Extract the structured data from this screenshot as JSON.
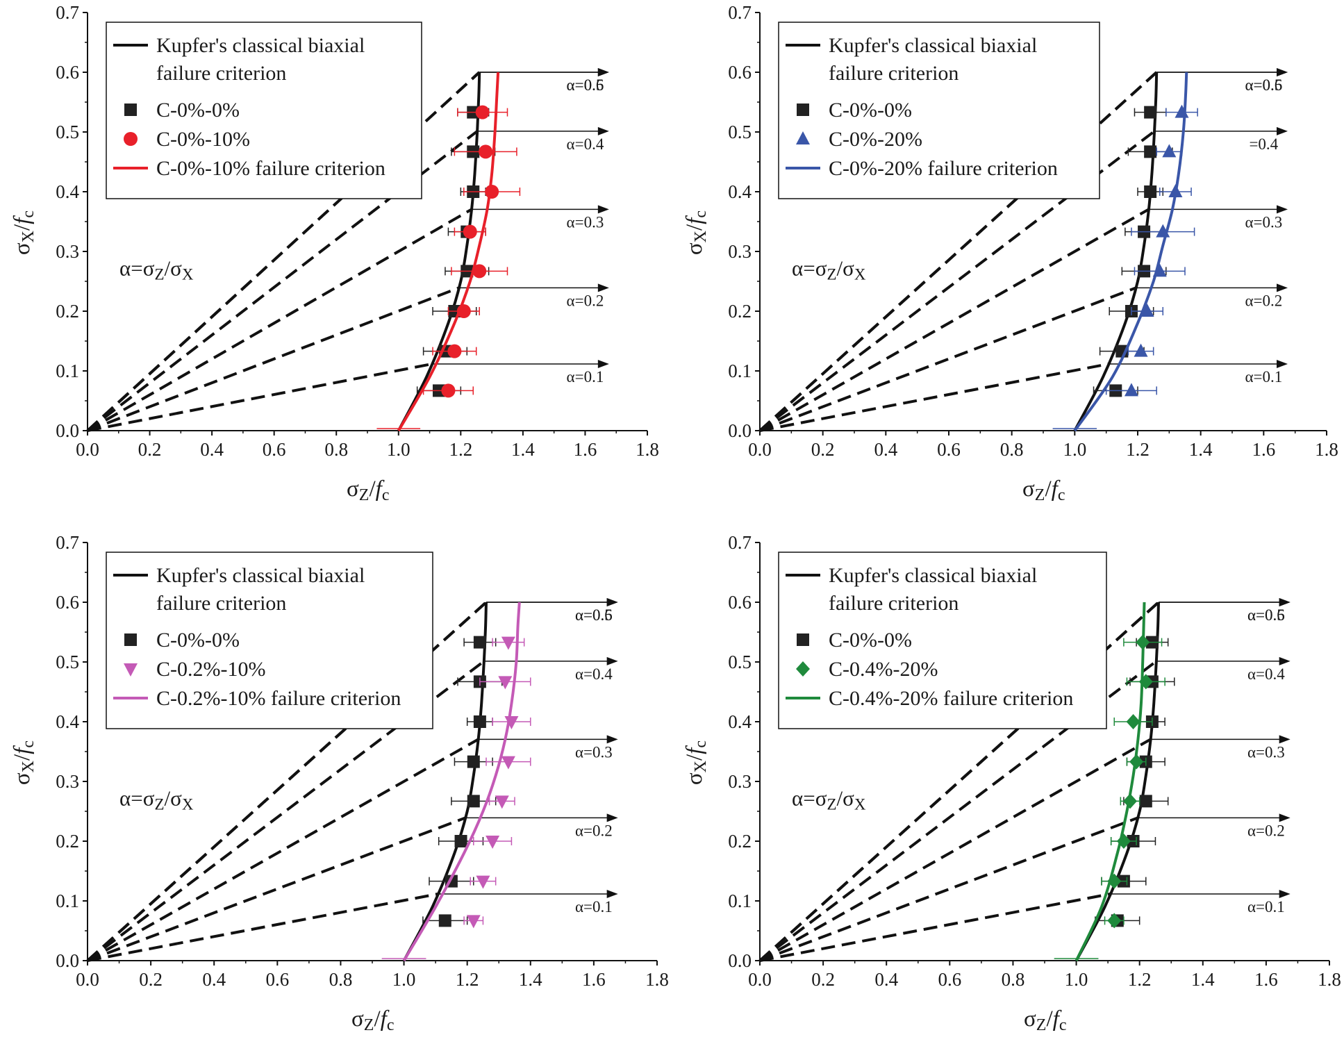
{
  "figure": {
    "xlim": [
      0,
      1.8
    ],
    "ylim": [
      0,
      0.7
    ],
    "x_ticks": [
      "0.0",
      "0.2",
      "0.4",
      "0.6",
      "0.8",
      "1.0",
      "1.2",
      "1.4",
      "1.6",
      "1.8"
    ],
    "y_ticks": [
      "0.0",
      "0.1",
      "0.2",
      "0.3",
      "0.4",
      "0.5",
      "0.6",
      "0.7"
    ],
    "x_axis_label": {
      "sigma": "σ",
      "sub": "Z",
      "slash": "/",
      "f": "f",
      "fsub": "c"
    },
    "y_axis_label": {
      "sigma": "σ",
      "sub": "X",
      "slash": "/",
      "f": "f",
      "fsub": "c"
    },
    "equation": {
      "alpha": "α=σ",
      "sub1": "Z",
      "mid": "/σ",
      "sub2": "X"
    },
    "alpha_labels": [
      "α=0.1",
      "α=0.2",
      "α=0.3",
      "α=0.4",
      "α=0.5",
      "α=0.6"
    ],
    "legend_kupfer_line1": "Kupfer's classical biaxial",
    "legend_kupfer_line2": "failure criterion"
  },
  "colors": {
    "kupfer": "#111111",
    "reference": "#222222",
    "red": "#e8202a",
    "blue": "#3a56a8",
    "magenta": "#c45ab6",
    "green": "#1f8a3c"
  },
  "chart_data": [
    {
      "type": "scatter",
      "panel": "top-left",
      "title": "",
      "xlabel": "σZ/fc",
      "ylabel": "σX/fc",
      "xlim": [
        0,
        1.8
      ],
      "ylim": [
        0,
        0.7
      ],
      "alpha_lines": [
        0.1,
        0.2,
        0.3,
        0.4,
        0.5,
        0.6
      ],
      "alpha_label_text": [
        "α=0.1",
        "α=0.2",
        "α=0.3",
        "α=0.4",
        "α=0.5",
        "α=0.6"
      ],
      "kupfer_curve": {
        "x": [
          1.0,
          1.09,
          1.16,
          1.2,
          1.22,
          1.235,
          1.245,
          1.253,
          1.258,
          1.26
        ],
        "y": [
          0.0,
          0.09,
          0.18,
          0.25,
          0.31,
          0.37,
          0.43,
          0.5,
          0.56,
          0.6
        ]
      },
      "legend": [
        "Kupfer's classical biaxial failure criterion",
        "C-0%-0%",
        "C-0%-10%",
        "C-0%-10%  failure criterion"
      ],
      "series": [
        {
          "name": "C-0%-0%",
          "marker": "square",
          "color": "#222222",
          "x": [
            1.13,
            1.15,
            1.18,
            1.22,
            1.22,
            1.24,
            1.24,
            1.24
          ],
          "y": [
            0.067,
            0.133,
            0.2,
            0.267,
            0.333,
            0.4,
            0.467,
            0.533
          ],
          "xerr": [
            0.07,
            0.07,
            0.07,
            0.07,
            0.06,
            0.04,
            0.07,
            0.05
          ]
        },
        {
          "name": "C-0%-10%",
          "marker": "circle",
          "color": "#e8202a",
          "x": [
            1.16,
            1.18,
            1.21,
            1.26,
            1.23,
            1.3,
            1.28,
            1.27
          ],
          "y": [
            0.067,
            0.133,
            0.2,
            0.267,
            0.333,
            0.4,
            0.467,
            0.533
          ],
          "xerr": [
            0.08,
            0.07,
            0.05,
            0.09,
            0.05,
            0.09,
            0.1,
            0.08
          ]
        },
        {
          "name": "C-0%-10%  failure criterion",
          "marker": "line",
          "color": "#e8202a",
          "x": [
            1.0,
            1.1,
            1.18,
            1.23,
            1.26,
            1.285,
            1.3,
            1.31,
            1.316,
            1.32
          ],
          "y": [
            0.0,
            0.09,
            0.18,
            0.25,
            0.31,
            0.37,
            0.43,
            0.5,
            0.56,
            0.6
          ]
        }
      ]
    },
    {
      "type": "scatter",
      "panel": "top-right",
      "title": "",
      "xlabel": "σZ/fc",
      "ylabel": "σX/fc",
      "xlim": [
        0,
        1.8
      ],
      "ylim": [
        0,
        0.7
      ],
      "alpha_lines": [
        0.1,
        0.2,
        0.3,
        0.4,
        0.5,
        0.6
      ],
      "alpha_label_text": [
        "α=0.1",
        "α=0.2",
        "α=0.3",
        "=0.4",
        "α=0.5",
        "α=0.6"
      ],
      "kupfer_curve": {
        "x": [
          1.0,
          1.09,
          1.16,
          1.2,
          1.22,
          1.235,
          1.245,
          1.253,
          1.258,
          1.26
        ],
        "y": [
          0.0,
          0.09,
          0.18,
          0.25,
          0.31,
          0.37,
          0.43,
          0.5,
          0.56,
          0.6
        ]
      },
      "legend": [
        "Kupfer's classical biaxial failure criterion",
        "C-0%-0%",
        "C-0%-20%",
        "C-0%-20% failure criterion"
      ],
      "series": [
        {
          "name": "C-0%-0%",
          "marker": "square",
          "color": "#222222",
          "x": [
            1.13,
            1.15,
            1.18,
            1.22,
            1.22,
            1.24,
            1.24,
            1.24
          ],
          "y": [
            0.067,
            0.133,
            0.2,
            0.267,
            0.333,
            0.4,
            0.467,
            0.533
          ],
          "xerr": [
            0.07,
            0.07,
            0.07,
            0.07,
            0.06,
            0.04,
            0.07,
            0.05
          ]
        },
        {
          "name": "C-0%-20%",
          "marker": "triangle-up",
          "color": "#3a56a8",
          "x": [
            1.18,
            1.21,
            1.23,
            1.27,
            1.28,
            1.32,
            1.3,
            1.34
          ],
          "y": [
            0.067,
            0.133,
            0.2,
            0.267,
            0.333,
            0.4,
            0.467,
            0.533
          ],
          "xerr": [
            0.08,
            0.04,
            0.05,
            0.08,
            0.1,
            0.05,
            0.04,
            0.05
          ]
        },
        {
          "name": "C-0%-20% failure criterion",
          "marker": "line",
          "color": "#3a56a8",
          "x": [
            1.0,
            1.12,
            1.2,
            1.25,
            1.28,
            1.31,
            1.33,
            1.345,
            1.352,
            1.355
          ],
          "y": [
            0.0,
            0.09,
            0.18,
            0.25,
            0.31,
            0.37,
            0.43,
            0.5,
            0.56,
            0.6
          ]
        }
      ]
    },
    {
      "type": "scatter",
      "panel": "bottom-left",
      "title": "",
      "xlabel": "σZ/fc",
      "ylabel": "σX/fc",
      "xlim": [
        0,
        1.8
      ],
      "ylim": [
        0,
        0.7
      ],
      "alpha_lines": [
        0.1,
        0.2,
        0.3,
        0.4,
        0.5,
        0.6
      ],
      "alpha_label_text": [
        "α=0.1",
        "α=0.2",
        "α=0.3",
        "α=0.4",
        "α=0.5",
        "α=0.6"
      ],
      "kupfer_curve": {
        "x": [
          1.0,
          1.09,
          1.16,
          1.2,
          1.22,
          1.235,
          1.245,
          1.253,
          1.258,
          1.26
        ],
        "y": [
          0.0,
          0.09,
          0.18,
          0.25,
          0.31,
          0.37,
          0.43,
          0.5,
          0.56,
          0.6
        ]
      },
      "legend": [
        "Kupfer's classical biaxial failure criterion",
        "C-0%-0%",
        "C-0.2%-10%",
        "C-0.2%-10% failure criterion"
      ],
      "series": [
        {
          "name": "C-0%-0%",
          "marker": "square",
          "color": "#222222",
          "x": [
            1.13,
            1.15,
            1.18,
            1.22,
            1.22,
            1.24,
            1.24,
            1.24
          ],
          "y": [
            0.067,
            0.133,
            0.2,
            0.267,
            0.333,
            0.4,
            0.467,
            0.533
          ],
          "xerr": [
            0.07,
            0.07,
            0.07,
            0.07,
            0.06,
            0.04,
            0.07,
            0.05
          ]
        },
        {
          "name": "C-0.2%-10%",
          "marker": "triangle-down",
          "color": "#c45ab6",
          "x": [
            1.22,
            1.25,
            1.28,
            1.31,
            1.33,
            1.34,
            1.32,
            1.33
          ],
          "y": [
            0.067,
            0.133,
            0.2,
            0.267,
            0.333,
            0.4,
            0.467,
            0.533
          ],
          "xerr": [
            0.03,
            0.04,
            0.06,
            0.04,
            0.07,
            0.06,
            0.08,
            0.05
          ]
        },
        {
          "name": "C-0.2%-10% failure criterion",
          "marker": "line",
          "color": "#c45ab6",
          "x": [
            1.0,
            1.1,
            1.19,
            1.25,
            1.29,
            1.32,
            1.34,
            1.355,
            1.36,
            1.365
          ],
          "y": [
            0.0,
            0.09,
            0.18,
            0.25,
            0.31,
            0.37,
            0.43,
            0.5,
            0.56,
            0.6
          ]
        }
      ]
    },
    {
      "type": "scatter",
      "panel": "bottom-right",
      "title": "",
      "xlabel": "σZ/fc",
      "ylabel": "σX/fc",
      "xlim": [
        0,
        1.8
      ],
      "ylim": [
        0,
        0.7
      ],
      "alpha_lines": [
        0.1,
        0.2,
        0.3,
        0.4,
        0.5,
        0.6
      ],
      "alpha_label_text": [
        "α=0.1",
        "α=0.2",
        "α=0.3",
        "α=0.4",
        "α=0.5",
        "α=0.6"
      ],
      "kupfer_curve": {
        "x": [
          1.0,
          1.09,
          1.16,
          1.2,
          1.22,
          1.235,
          1.245,
          1.253,
          1.258,
          1.26
        ],
        "y": [
          0.0,
          0.09,
          0.18,
          0.25,
          0.31,
          0.37,
          0.43,
          0.5,
          0.56,
          0.6
        ]
      },
      "legend": [
        "Kupfer's classical biaxial failure criterion",
        "C-0%-0%",
        "C-0.4%-20%",
        "C-0.4%-20% failure criterion"
      ],
      "series": [
        {
          "name": "C-0%-0%",
          "marker": "square",
          "color": "#222222",
          "x": [
            1.13,
            1.15,
            1.18,
            1.22,
            1.22,
            1.24,
            1.24,
            1.24
          ],
          "y": [
            0.067,
            0.133,
            0.2,
            0.267,
            0.333,
            0.4,
            0.467,
            0.533
          ],
          "xerr": [
            0.07,
            0.07,
            0.07,
            0.07,
            0.06,
            0.04,
            0.07,
            0.05
          ]
        },
        {
          "name": "C-0.4%-20%",
          "marker": "diamond",
          "color": "#1f8a3c",
          "x": [
            1.12,
            1.12,
            1.15,
            1.17,
            1.19,
            1.18,
            1.22,
            1.21
          ],
          "y": [
            0.067,
            0.133,
            0.2,
            0.267,
            0.333,
            0.4,
            0.467,
            0.533
          ],
          "xerr": [
            0.03,
            0.04,
            0.04,
            0.03,
            0.03,
            0.06,
            0.06,
            0.06
          ]
        },
        {
          "name": "C-0.4%-20% failure criterion",
          "marker": "line",
          "color": "#1f8a3c",
          "x": [
            1.0,
            1.08,
            1.13,
            1.16,
            1.18,
            1.195,
            1.205,
            1.21,
            1.213,
            1.215
          ],
          "y": [
            0.0,
            0.09,
            0.18,
            0.25,
            0.31,
            0.37,
            0.43,
            0.5,
            0.56,
            0.6
          ]
        }
      ]
    }
  ]
}
